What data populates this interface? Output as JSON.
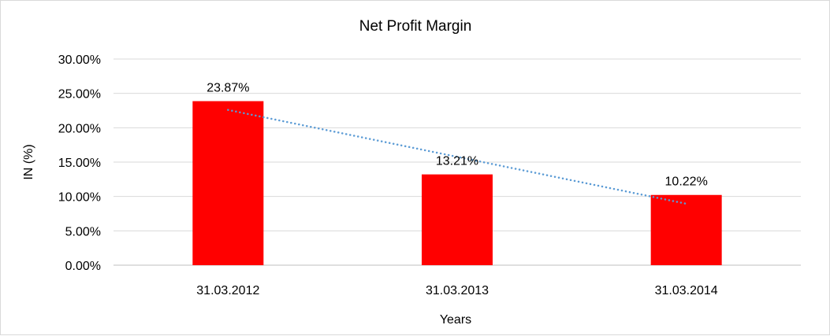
{
  "chart_data": {
    "type": "bar",
    "title": "Net Profit Margin",
    "xlabel": "Years",
    "ylabel": "IN (%)",
    "categories": [
      "31.03.2012",
      "31.03.2013",
      "31.03.2014"
    ],
    "values": [
      23.87,
      13.21,
      10.22
    ],
    "data_labels": [
      "23.87%",
      "13.21%",
      "10.22%"
    ],
    "ylim": [
      0,
      30
    ],
    "yticks": [
      "0.00%",
      "5.00%",
      "10.00%",
      "15.00%",
      "20.00%",
      "25.00%",
      "30.00%"
    ],
    "grid": true,
    "legend": "none",
    "trendline": {
      "type": "linear",
      "style": "dotted"
    },
    "colors": {
      "bar": "#ff0000",
      "trendline": "#5b9bd5",
      "grid": "#d9d9d9"
    }
  }
}
